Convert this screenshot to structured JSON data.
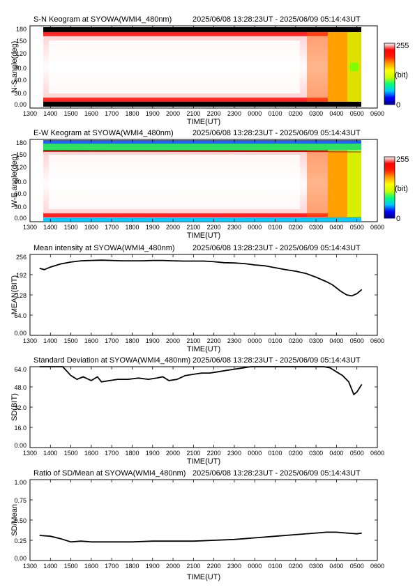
{
  "header": {
    "time_range": "2025/06/08 13:28:23UT - 2025/06/09 05:14:43UT"
  },
  "x_axis": {
    "label": "TIME(UT)",
    "ticks": [
      "1300",
      "1400",
      "1500",
      "1600",
      "1700",
      "1800",
      "1900",
      "2000",
      "2100",
      "2200",
      "2300",
      "0000",
      "0100",
      "0200",
      "0300",
      "0400",
      "0500",
      "0600"
    ],
    "range_hours_from_1300": [
      0,
      17
    ],
    "data_start": "13:28:23",
    "data_end": "05:14:43"
  },
  "colorbar": {
    "max_label": "255",
    "unit_label": "(bit)",
    "min_label": "0",
    "colors": [
      "#000080",
      "#0000ff",
      "#00c8ff",
      "#00ff80",
      "#c8ff00",
      "#ffff00",
      "#ffa000",
      "#ff2000",
      "#ff0000",
      "#ffffff"
    ]
  },
  "chart_data": [
    {
      "type": "heatmap",
      "title": "S-N Keogram at SYOWA(WMI4_480nm)",
      "xlabel": "TIME(UT)",
      "ylabel": "N-S angle(deg)",
      "yticks": [
        "0.00",
        "30.0",
        "60.0",
        "90.0",
        "120",
        "150",
        "180"
      ],
      "ylim": [
        0,
        180
      ],
      "z_range": [
        0,
        255
      ]
    },
    {
      "type": "heatmap",
      "title": "E-W Keogram at SYOWA(WMI4_480nm)",
      "xlabel": "TIME(UT)",
      "ylabel": "W-E angle(deg)",
      "yticks": [
        "0.00",
        "30.0",
        "60.0",
        "90.0",
        "120",
        "150",
        "180"
      ],
      "ylim": [
        0,
        180
      ],
      "z_range": [
        0,
        255
      ]
    },
    {
      "type": "line",
      "title": "Mean intensity at SYOWA(WMI4_480nm)",
      "xlabel": "TIME(UT)",
      "ylabel": "MEAN(BIT)",
      "yticks": [
        "0.00",
        "64.0",
        "128",
        "192",
        "256"
      ],
      "ylim": [
        0,
        256
      ],
      "x_hours": [
        0.47,
        0.7,
        1.0,
        1.5,
        2.0,
        2.5,
        3.0,
        3.5,
        4.0,
        4.5,
        5.0,
        5.5,
        6.0,
        6.5,
        7.0,
        7.5,
        8.0,
        8.5,
        9.0,
        9.5,
        10.0,
        10.5,
        11.0,
        11.5,
        12.0,
        12.5,
        13.0,
        13.5,
        14.0,
        14.5,
        14.8,
        15.0,
        15.2,
        15.5,
        15.75,
        16.0,
        16.24
      ],
      "values": [
        212,
        208,
        216,
        226,
        232,
        236,
        237,
        238,
        237,
        236,
        236,
        236,
        237,
        237,
        236,
        235,
        235,
        235,
        233,
        230,
        229,
        227,
        223,
        220,
        214,
        208,
        203,
        196,
        184,
        170,
        160,
        150,
        140,
        128,
        125,
        132,
        145
      ]
    },
    {
      "type": "line",
      "title": "Standard Deviation at SYOWA(WMI4_480nm)",
      "xlabel": "TIME(UT)",
      "ylabel": "SD(BIT)",
      "yticks": [
        "0.00",
        "16.0",
        "32.0",
        "48.0",
        "64.0"
      ],
      "ylim": [
        0,
        64
      ],
      "x_hours": [
        0.47,
        0.9,
        1.3,
        1.6,
        2.0,
        2.3,
        2.6,
        3.0,
        3.3,
        3.5,
        3.9,
        4.3,
        4.8,
        5.3,
        5.8,
        6.2,
        6.5,
        6.8,
        7.2,
        7.6,
        8.0,
        8.4,
        8.8,
        9.2,
        9.6,
        10.0,
        10.4,
        10.8,
        11.2,
        11.6,
        12.0,
        12.5,
        13.0,
        13.5,
        14.0,
        14.4,
        14.7,
        15.0,
        15.3,
        15.6,
        15.85,
        16.0,
        16.24
      ],
      "values": [
        69,
        68,
        67,
        64,
        57,
        54,
        56,
        53,
        56,
        52,
        53,
        54,
        54,
        55,
        54,
        55,
        56,
        53,
        54,
        57,
        58,
        59,
        59,
        60,
        61,
        62,
        63,
        64,
        65,
        65,
        66,
        67,
        67,
        66,
        65,
        64,
        63,
        60,
        57,
        52,
        42,
        44,
        50
      ]
    },
    {
      "type": "line",
      "title": "Ratio of SD/Mean at SYOWA(WMI4_480nm)",
      "xlabel": "TIME(UT)",
      "ylabel": "SD/Mean",
      "yticks": [
        "0.00",
        "0.25",
        "0.50",
        "0.75",
        "1.00"
      ],
      "ylim": [
        0,
        1
      ],
      "x_hours": [
        0.47,
        1.0,
        1.5,
        2.0,
        2.5,
        3.0,
        3.5,
        4.0,
        5.0,
        6.0,
        7.0,
        8.0,
        9.0,
        10.0,
        11.0,
        12.0,
        13.0,
        14.0,
        14.5,
        15.0,
        15.5,
        16.0,
        16.24
      ],
      "values": [
        0.31,
        0.3,
        0.27,
        0.23,
        0.24,
        0.23,
        0.23,
        0.23,
        0.23,
        0.24,
        0.24,
        0.24,
        0.25,
        0.26,
        0.28,
        0.3,
        0.32,
        0.34,
        0.35,
        0.35,
        0.34,
        0.33,
        0.34
      ]
    }
  ]
}
